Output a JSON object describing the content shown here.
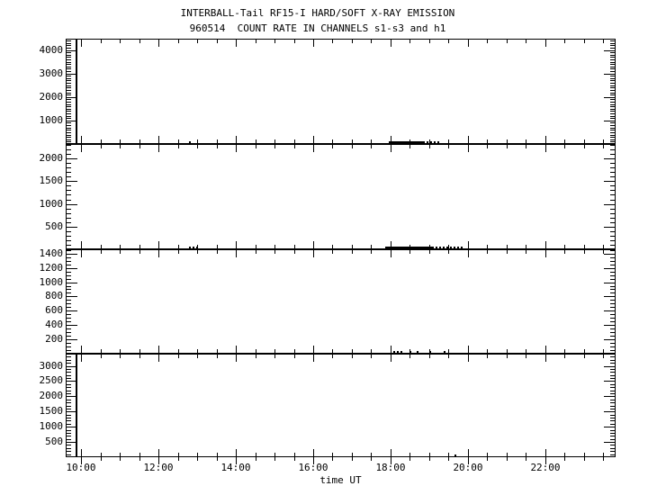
{
  "colors": {
    "foreground": "#000000",
    "background": "#ffffff"
  },
  "chart_data": {
    "type": "line",
    "title": "INTERBALL-Tail RF15-I HARD/SOFT X-RAY EMISSION",
    "subtitle": "960514  COUNT RATE IN CHANNELS s1-s3 and h1",
    "xlabel": "time UT",
    "x_range_hours": [
      9.6,
      23.82
    ],
    "x_minor_tick_interval_hours": 0.5,
    "x_major_tick_hours": [
      10,
      12,
      14,
      16,
      18,
      20,
      22
    ],
    "x_tick_labels": [
      "10:00",
      "12:00",
      "14:00",
      "16:00",
      "18:00",
      "20:00",
      "22:00"
    ],
    "grid": false,
    "legend": "none",
    "panels": [
      {
        "channel": "s1",
        "ylim": [
          0,
          4480
        ],
        "y_major_step": 1000,
        "y_minor_step": 100,
        "yticks": [
          1000,
          2000,
          3000,
          4000
        ],
        "y_tick_labels": [
          "1000",
          "2000",
          "3000",
          "4000"
        ],
        "segments": [
          {
            "kind": "vline",
            "time": 9.88,
            "from": 0,
            "to": 4480
          },
          {
            "kind": "dot",
            "time": 12.8,
            "value": 60
          },
          {
            "kind": "solid",
            "t1": 17.95,
            "t2": 18.83,
            "value": 60
          },
          {
            "kind": "dotted",
            "t1": 18.83,
            "t2": 19.26,
            "value": 60
          }
        ]
      },
      {
        "channel": "s2",
        "ylim": [
          0,
          2320
        ],
        "y_major_step": 500,
        "y_minor_step": 100,
        "yticks": [
          500,
          1000,
          1500,
          2000
        ],
        "y_tick_labels": [
          "500",
          "1000",
          "1500",
          "2000"
        ],
        "segments": [
          {
            "kind": "dotted",
            "t1": 12.79,
            "t2": 13.02,
            "value": 40
          },
          {
            "kind": "solid",
            "t1": 17.86,
            "t2": 19.07,
            "value": 40
          },
          {
            "kind": "dotted",
            "t1": 19.07,
            "t2": 19.84,
            "value": 40
          }
        ]
      },
      {
        "channel": "s3",
        "ylim": [
          0,
          1460
        ],
        "y_major_step": 200,
        "y_minor_step": 50,
        "yticks": [
          200,
          400,
          600,
          800,
          1000,
          1200,
          1400
        ],
        "y_tick_labels": [
          "200",
          "400",
          "600",
          "800",
          "1000",
          "1200",
          "1400"
        ],
        "segments": [
          {
            "kind": "dotted",
            "t1": 18.07,
            "t2": 18.33,
            "value": 30
          },
          {
            "kind": "dot",
            "time": 18.48,
            "value": 30
          },
          {
            "kind": "dot",
            "time": 18.67,
            "value": 30
          },
          {
            "kind": "dot",
            "time": 19.0,
            "value": 30
          },
          {
            "kind": "dot",
            "time": 19.37,
            "value": 30
          }
        ]
      },
      {
        "channel": "h1",
        "ylim": [
          0,
          3400
        ],
        "y_major_step": 500,
        "y_minor_step": 100,
        "yticks": [
          500,
          1000,
          1500,
          2000,
          2500,
          3000
        ],
        "y_tick_labels": [
          "500",
          "1000",
          "1500",
          "2000",
          "2500",
          "3000"
        ],
        "segments": [
          {
            "kind": "vline",
            "time": 9.88,
            "from": 0,
            "to": 3400
          },
          {
            "kind": "dot",
            "time": 19.65,
            "value": 60
          }
        ]
      }
    ]
  }
}
